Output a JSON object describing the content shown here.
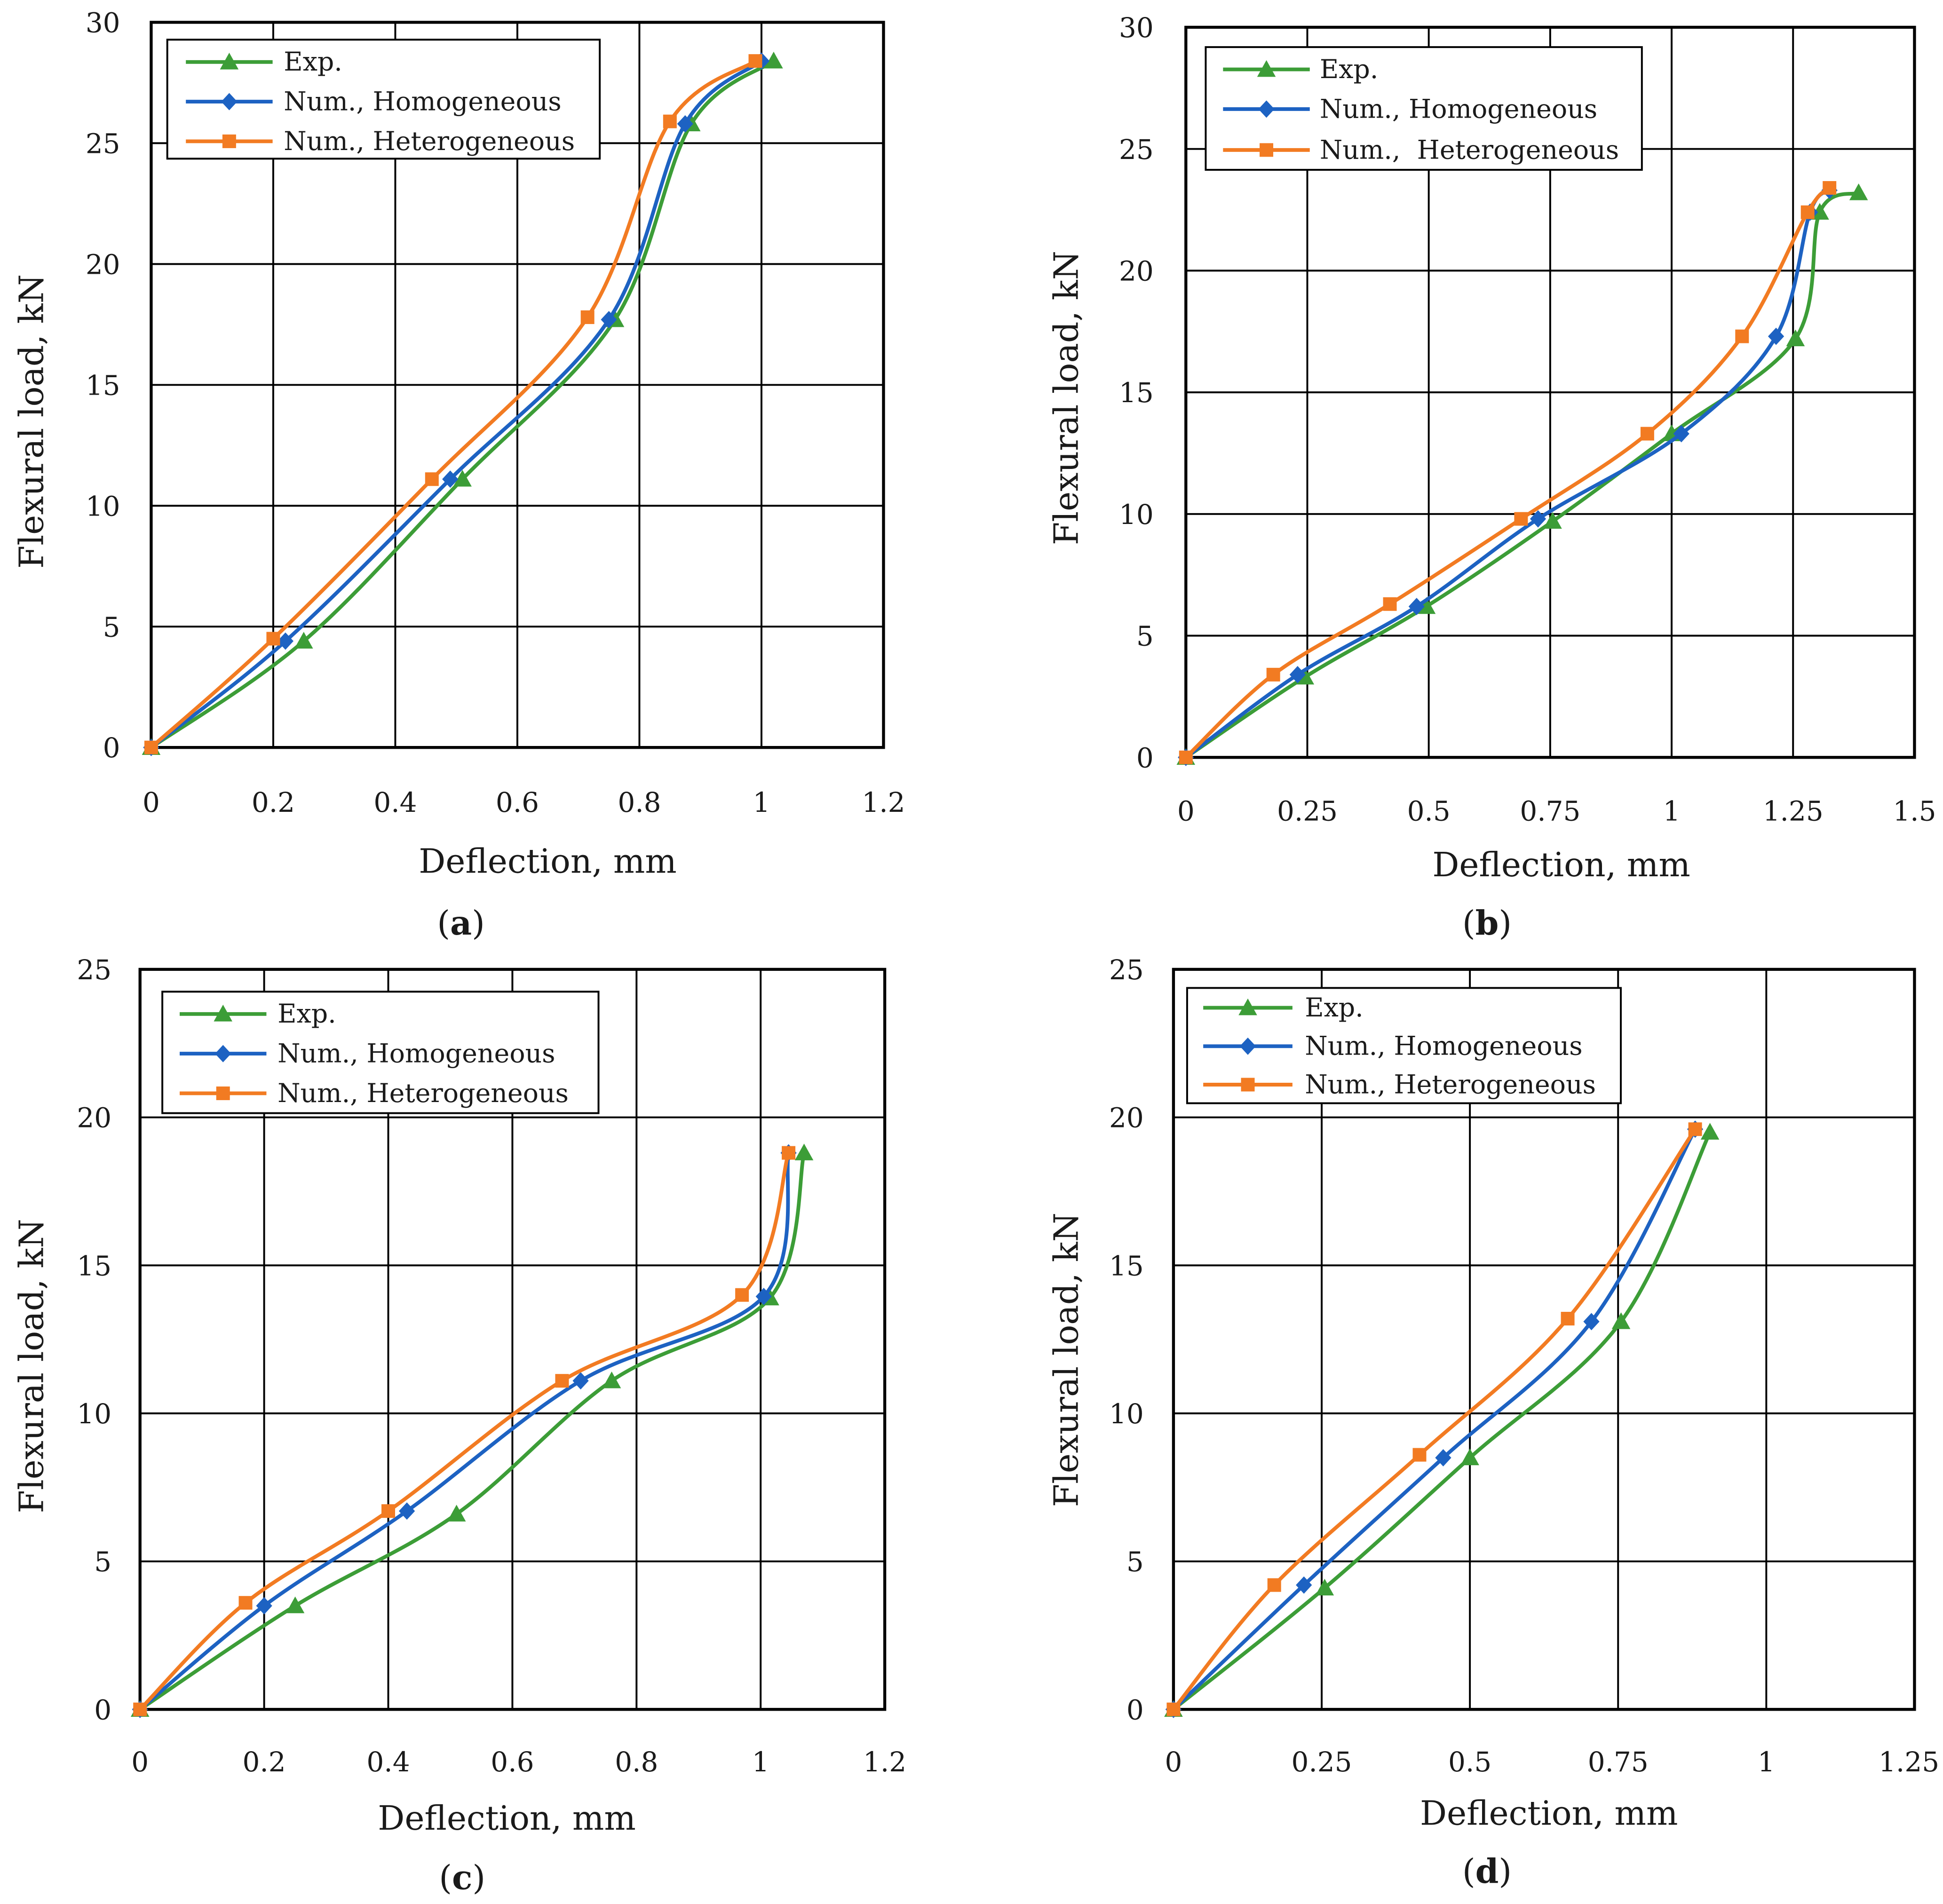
{
  "chart_data": [
    {
      "panel_label": "(a)",
      "type": "line",
      "title": "",
      "xlabel": "Deflection, mm",
      "ylabel": "Flexural load, kN",
      "xlim": [
        0,
        1.2
      ],
      "ylim": [
        0,
        30
      ],
      "xticks": [
        0,
        0.2,
        0.4,
        0.6,
        0.8,
        1,
        1.2
      ],
      "xtick_labels": [
        "0",
        "0.2",
        "0.4",
        "0.6",
        "0.8",
        "1",
        "1.2"
      ],
      "yticks": [
        0,
        5,
        10,
        15,
        20,
        25,
        30
      ],
      "ytick_labels": [
        "0",
        "5",
        "10",
        "15",
        "20",
        "25",
        "30"
      ],
      "grid": true,
      "legend_position": "top-left",
      "series": [
        {
          "name": "Exp.",
          "marker": "triangle",
          "color": "#3c9d37",
          "x": [
            0,
            0.25,
            0.51,
            0.76,
            0.885,
            1.02
          ],
          "y": [
            0,
            4.4,
            11.1,
            17.7,
            25.8,
            28.4
          ]
        },
        {
          "name": "Num., Homogeneous",
          "marker": "diamond",
          "color": "#1d62c2",
          "x": [
            0,
            0.22,
            0.49,
            0.75,
            0.875,
            1.0
          ],
          "y": [
            0,
            4.4,
            11.1,
            17.7,
            25.8,
            28.4
          ]
        },
        {
          "name": "Num., Heterogeneous",
          "marker": "square",
          "color": "#f27b22",
          "x": [
            0,
            0.2,
            0.46,
            0.715,
            0.85,
            0.99
          ],
          "y": [
            0,
            4.5,
            11.1,
            17.8,
            25.9,
            28.4
          ]
        }
      ]
    },
    {
      "panel_label": "(b)",
      "type": "line",
      "title": "",
      "xlabel": "Deflection, mm",
      "ylabel": "Flexural load, kN",
      "xlim": [
        0,
        1.5
      ],
      "ylim": [
        0,
        30
      ],
      "xticks": [
        0,
        0.25,
        0.5,
        0.75,
        1,
        1.25,
        1.5
      ],
      "xtick_labels": [
        "0",
        "0.25",
        "0.5",
        "0.75",
        "1",
        "1.25",
        "1.5"
      ],
      "yticks": [
        0,
        5,
        10,
        15,
        20,
        25,
        30
      ],
      "ytick_labels": [
        "0",
        "5",
        "10",
        "15",
        "20",
        "25",
        "30"
      ],
      "grid": true,
      "legend_position": "top-left",
      "series": [
        {
          "name": "Exp.",
          "marker": "triangle",
          "color": "#3c9d37",
          "x": [
            0,
            0.245,
            0.495,
            0.755,
            1.0,
            1.255,
            1.305,
            1.385
          ],
          "y": [
            0,
            3.3,
            6.2,
            9.7,
            13.3,
            17.2,
            22.4,
            23.2
          ]
        },
        {
          "name": "Num., Homogeneous",
          "marker": "diamond",
          "color": "#1d62c2",
          "x": [
            0,
            0.23,
            0.475,
            0.725,
            1.02,
            1.215,
            1.285,
            1.325
          ],
          "y": [
            0,
            3.4,
            6.2,
            9.8,
            13.3,
            17.3,
            22.4,
            23.3
          ]
        },
        {
          "name": "Num.,  Heterogeneous",
          "marker": "square",
          "color": "#f27b22",
          "x": [
            0,
            0.18,
            0.42,
            0.69,
            0.95,
            1.145,
            1.28,
            1.325
          ],
          "y": [
            0,
            3.4,
            6.3,
            9.8,
            13.3,
            17.3,
            22.4,
            23.4
          ]
        }
      ]
    },
    {
      "panel_label": "(c)",
      "type": "line",
      "title": "",
      "xlabel": "Deflection, mm",
      "ylabel": "Flexural load, kN",
      "xlim": [
        0,
        1.2
      ],
      "ylim": [
        0,
        25
      ],
      "xticks": [
        0,
        0.2,
        0.4,
        0.6,
        0.8,
        1,
        1.2
      ],
      "xtick_labels": [
        "0",
        "0.2",
        "0.4",
        "0.6",
        "0.8",
        "1",
        "1.2"
      ],
      "yticks": [
        0,
        5,
        10,
        15,
        20,
        25
      ],
      "ytick_labels": [
        "0",
        "5",
        "10",
        "15",
        "20",
        "25"
      ],
      "grid": true,
      "legend_position": "top-left",
      "series": [
        {
          "name": "Exp.",
          "marker": "triangle",
          "color": "#3c9d37",
          "x": [
            0,
            0.25,
            0.51,
            0.76,
            1.015,
            1.07
          ],
          "y": [
            0,
            3.5,
            6.6,
            11.1,
            13.9,
            18.8
          ]
        },
        {
          "name": "Num., Homogeneous",
          "marker": "diamond",
          "color": "#1d62c2",
          "x": [
            0,
            0.2,
            0.43,
            0.71,
            1.005,
            1.045
          ],
          "y": [
            0,
            3.5,
            6.7,
            11.1,
            13.95,
            18.8
          ]
        },
        {
          "name": "Num., Heterogeneous",
          "marker": "square",
          "color": "#f27b22",
          "x": [
            0,
            0.17,
            0.4,
            0.68,
            0.97,
            1.045
          ],
          "y": [
            0,
            3.6,
            6.7,
            11.1,
            14.0,
            18.8
          ]
        }
      ]
    },
    {
      "panel_label": "(d)",
      "type": "line",
      "title": "",
      "xlabel": "Deflection, mm",
      "ylabel": "Flexural load, kN",
      "xlim": [
        0,
        1.25
      ],
      "ylim": [
        0,
        25
      ],
      "xticks": [
        0,
        0.25,
        0.5,
        0.75,
        1,
        1.25
      ],
      "xtick_labels": [
        "0",
        "0.25",
        "0.5",
        "0.75",
        "1",
        "1.25"
      ],
      "yticks": [
        0,
        5,
        10,
        15,
        20,
        25
      ],
      "ytick_labels": [
        "0",
        "5",
        "10",
        "15",
        "20",
        "25"
      ],
      "grid": true,
      "legend_position": "top-left",
      "series": [
        {
          "name": "Exp.",
          "marker": "triangle",
          "color": "#3c9d37",
          "x": [
            0,
            0.255,
            0.5,
            0.755,
            0.905
          ],
          "y": [
            0,
            4.1,
            8.5,
            13.1,
            19.5
          ]
        },
        {
          "name": "Num., Homogeneous",
          "marker": "diamond",
          "color": "#1d62c2",
          "x": [
            0,
            0.22,
            0.455,
            0.705,
            0.88
          ],
          "y": [
            0,
            4.2,
            8.5,
            13.1,
            19.6
          ]
        },
        {
          "name": "Num., Heterogeneous",
          "marker": "square",
          "color": "#f27b22",
          "x": [
            0,
            0.17,
            0.415,
            0.665,
            0.88
          ],
          "y": [
            0,
            4.2,
            8.6,
            13.2,
            19.6
          ]
        }
      ]
    }
  ]
}
